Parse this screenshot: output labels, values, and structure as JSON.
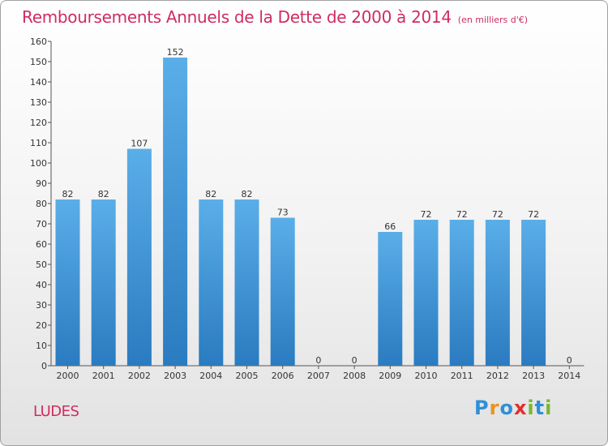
{
  "header": {
    "title": "Remboursements Annuels de la Dette de 2000 à 2014",
    "subtitle": "(en milliers d'€)"
  },
  "footer": {
    "commune": "LUDES",
    "logo_text": "Proxiti"
  },
  "colors": {
    "title": "#d02c5f",
    "bar_top": "#5aaee8",
    "bar_bottom": "#2a7bc0"
  },
  "chart_data": {
    "type": "bar",
    "title": "Remboursements Annuels de la Dette de 2000 à 2014",
    "subtitle": "(en milliers d'€)",
    "categories": [
      "2000",
      "2001",
      "2002",
      "2003",
      "2004",
      "2005",
      "2006",
      "2007",
      "2008",
      "2009",
      "2010",
      "2011",
      "2012",
      "2013",
      "2014"
    ],
    "values": [
      82,
      82,
      107,
      152,
      82,
      82,
      73,
      0,
      0,
      66,
      72,
      72,
      72,
      72,
      0
    ],
    "ylim": [
      0,
      160
    ],
    "yticks": [
      0,
      10,
      20,
      30,
      40,
      50,
      60,
      70,
      80,
      90,
      100,
      110,
      120,
      130,
      140,
      150,
      160
    ],
    "grid": false,
    "xlabel": "",
    "ylabel": ""
  }
}
